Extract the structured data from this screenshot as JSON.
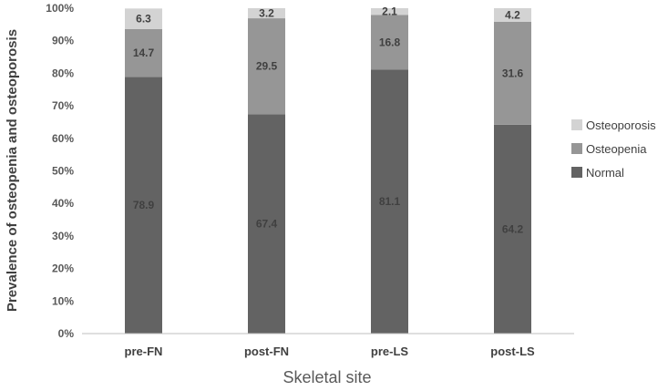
{
  "chart_data": {
    "type": "bar",
    "stacked": true,
    "categories": [
      "pre-FN",
      "post-FN",
      "pre-LS",
      "post-LS"
    ],
    "series": [
      {
        "name": "Normal",
        "values": [
          78.9,
          67.4,
          81.1,
          64.2
        ],
        "color": "#636363"
      },
      {
        "name": "Osteopenia",
        "values": [
          14.7,
          29.5,
          16.8,
          31.6
        ],
        "color": "#969696"
      },
      {
        "name": "Osteoporosis",
        "values": [
          6.3,
          3.2,
          2.1,
          4.2
        ],
        "color": "#d3d3d3"
      }
    ],
    "xlabel": "Skeletal site",
    "ylabel": "Prevalence of osteopenia and osteoporosis",
    "ylim": [
      0,
      100
    ],
    "yticks": [
      "0%",
      "10%",
      "20%",
      "30%",
      "40%",
      "50%",
      "60%",
      "70%",
      "80%",
      "90%",
      "100%"
    ],
    "legend": {
      "position": "right",
      "order": [
        "Osteoporosis",
        "Osteopenia",
        "Normal"
      ]
    },
    "grid": false
  }
}
